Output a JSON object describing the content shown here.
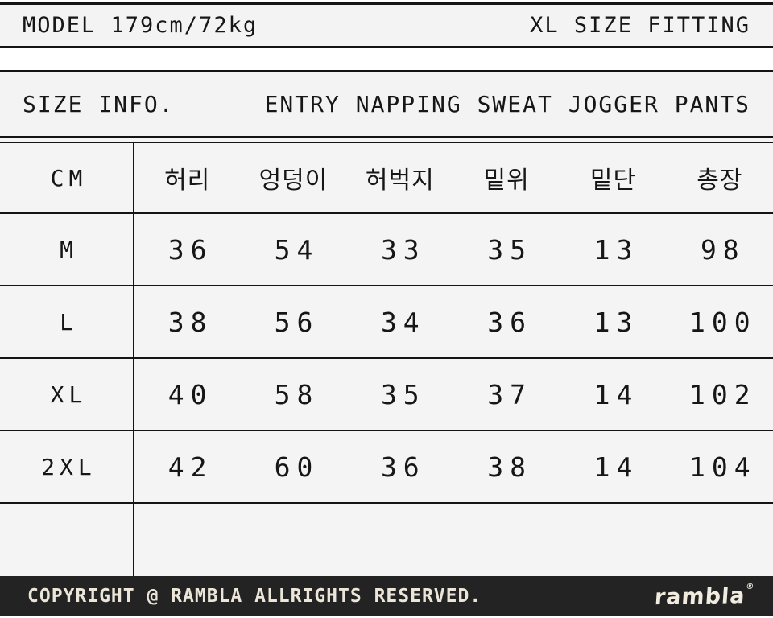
{
  "top_bar": {
    "model_info": "MODEL 179cm/72kg",
    "fitting_info": "XL SIZE FITTING"
  },
  "info_bar": {
    "title": "SIZE INFO.",
    "product_name": "ENTRY NAPPING SWEAT JOGGER PANTS"
  },
  "table": {
    "unit_label": "CM",
    "columns": [
      "허리",
      "엉덩이",
      "허벅지",
      "밑위",
      "밑단",
      "총장"
    ],
    "rows": [
      {
        "size": "M",
        "values": [
          "36",
          "54",
          "33",
          "35",
          "13",
          "98"
        ]
      },
      {
        "size": "L",
        "values": [
          "38",
          "56",
          "34",
          "36",
          "13",
          "100"
        ]
      },
      {
        "size": "XL",
        "values": [
          "40",
          "58",
          "35",
          "37",
          "14",
          "102"
        ]
      },
      {
        "size": "2XL",
        "values": [
          "42",
          "60",
          "36",
          "38",
          "14",
          "104"
        ]
      }
    ]
  },
  "chart_data": {
    "type": "table",
    "title": "ENTRY NAPPING SWEAT JOGGER PANTS - SIZE INFO (CM)",
    "columns": [
      "CM",
      "허리",
      "엉덩이",
      "허벅지",
      "밑위",
      "밑단",
      "총장"
    ],
    "rows": [
      [
        "M",
        36,
        54,
        33,
        35,
        13,
        98
      ],
      [
        "L",
        38,
        56,
        34,
        36,
        13,
        100
      ],
      [
        "XL",
        40,
        58,
        35,
        37,
        14,
        102
      ],
      [
        "2XL",
        42,
        60,
        36,
        38,
        14,
        104
      ]
    ]
  },
  "footer": {
    "copyright": "COPYRIGHT @ RAMBLA ALLRIGHTS RESERVED.",
    "logo_text": "rambla",
    "logo_mark": "®"
  },
  "colors": {
    "band_background": "#f3f3f3",
    "line_black": "#141414",
    "footer_background": "#232323",
    "footer_text": "#ebe6d9"
  }
}
